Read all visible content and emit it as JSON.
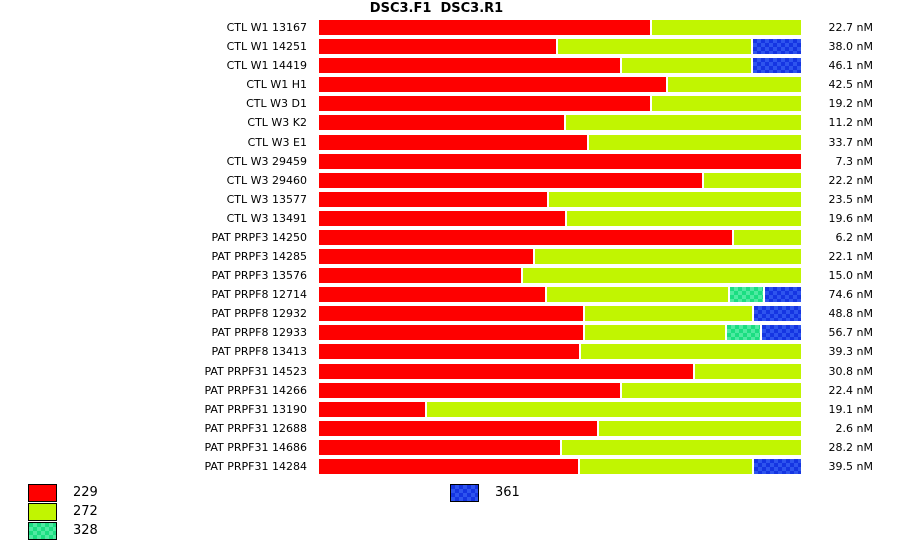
{
  "title": "DSC3.F1  DSC3.R1",
  "value_unit": "nM",
  "colors": {
    "229": "#fe0000",
    "272": "#c1f501",
    "328_base": "#1bde81",
    "328_dot": "#4feaa2",
    "361_base": "#1535e2",
    "361_dot": "#2e54ee"
  },
  "legend": {
    "items": [
      {
        "label": "229",
        "swatch": "red-solid"
      },
      {
        "label": "272",
        "swatch": "green-solid"
      },
      {
        "label": "328",
        "swatch": "green-checkered"
      },
      {
        "label": "361",
        "swatch": "blue-checkered"
      }
    ]
  },
  "chart_data": {
    "type": "bar",
    "orientation": "horizontal",
    "stacked": true,
    "grid": false,
    "axes_visible": false,
    "series_names": [
      "229",
      "272",
      "328",
      "361"
    ],
    "segment_unit": "percent-of-bar-width",
    "rows": [
      {
        "label": "CTL W1 13167",
        "value_label": "22.7 nM",
        "segments": [
          {
            "series": "229",
            "pct": 68.7
          },
          {
            "series": "272",
            "pct": 31.3
          }
        ]
      },
      {
        "label": "CTL W1 14251",
        "value_label": "38.0 nM",
        "segments": [
          {
            "series": "229",
            "pct": 49.2
          },
          {
            "series": "272",
            "pct": 40.5
          },
          {
            "series": "361",
            "pct": 10.3
          }
        ]
      },
      {
        "label": "CTL W1 14419",
        "value_label": "46.1 nM",
        "segments": [
          {
            "series": "229",
            "pct": 62.4
          },
          {
            "series": "272",
            "pct": 27.2
          },
          {
            "series": "361",
            "pct": 10.4
          }
        ]
      },
      {
        "label": "CTL W1 H1",
        "value_label": "42.5 nM",
        "segments": [
          {
            "series": "229",
            "pct": 72.0
          },
          {
            "series": "272",
            "pct": 28.0
          }
        ]
      },
      {
        "label": "CTL W3 D1",
        "value_label": "19.2 nM",
        "segments": [
          {
            "series": "229",
            "pct": 68.7
          },
          {
            "series": "272",
            "pct": 31.3
          }
        ]
      },
      {
        "label": "CTL W3 K2",
        "value_label": "11.2 nM",
        "segments": [
          {
            "series": "229",
            "pct": 50.8
          },
          {
            "series": "272",
            "pct": 49.2
          }
        ]
      },
      {
        "label": "CTL W3 E1",
        "value_label": "33.7 nM",
        "segments": [
          {
            "series": "229",
            "pct": 55.6
          },
          {
            "series": "272",
            "pct": 44.4
          }
        ]
      },
      {
        "label": "CTL W3 29459",
        "value_label": "7.3 nM",
        "segments": [
          {
            "series": "229",
            "pct": 100.0
          }
        ]
      },
      {
        "label": "CTL W3 29460",
        "value_label": "22.2 nM",
        "segments": [
          {
            "series": "229",
            "pct": 79.5
          },
          {
            "series": "272",
            "pct": 20.5
          }
        ]
      },
      {
        "label": "CTL W3 13577",
        "value_label": "23.5 nM",
        "segments": [
          {
            "series": "229",
            "pct": 47.3
          },
          {
            "series": "272",
            "pct": 52.7
          }
        ]
      },
      {
        "label": "CTL W3 13491",
        "value_label": "19.6 nM",
        "segments": [
          {
            "series": "229",
            "pct": 51.0
          },
          {
            "series": "272",
            "pct": 49.0
          }
        ]
      },
      {
        "label": "PAT PRPF3 14250",
        "value_label": "6.2 nM",
        "segments": [
          {
            "series": "229",
            "pct": 85.7
          },
          {
            "series": "272",
            "pct": 14.3
          }
        ]
      },
      {
        "label": "PAT PRPF3 14285",
        "value_label": "22.1 nM",
        "segments": [
          {
            "series": "229",
            "pct": 44.4
          },
          {
            "series": "272",
            "pct": 55.6
          }
        ]
      },
      {
        "label": "PAT PRPF3 13576",
        "value_label": "15.0 nM",
        "segments": [
          {
            "series": "229",
            "pct": 41.9
          },
          {
            "series": "272",
            "pct": 58.1
          }
        ]
      },
      {
        "label": "PAT PRPF8 12714",
        "value_label": "74.6 nM",
        "segments": [
          {
            "series": "229",
            "pct": 46.9
          },
          {
            "series": "272",
            "pct": 38.0
          },
          {
            "series": "328",
            "pct": 7.3
          },
          {
            "series": "361",
            "pct": 7.8
          }
        ]
      },
      {
        "label": "PAT PRPF8 12932",
        "value_label": "48.8 nM",
        "segments": [
          {
            "series": "229",
            "pct": 54.8
          },
          {
            "series": "272",
            "pct": 35.1
          },
          {
            "series": "361",
            "pct": 10.1
          }
        ]
      },
      {
        "label": "PAT PRPF8 12933",
        "value_label": "56.7 nM",
        "segments": [
          {
            "series": "229",
            "pct": 54.8
          },
          {
            "series": "272",
            "pct": 29.5
          },
          {
            "series": "328",
            "pct": 7.3
          },
          {
            "series": "361",
            "pct": 8.4
          }
        ]
      },
      {
        "label": "PAT PRPF8 13413",
        "value_label": "39.3 nM",
        "segments": [
          {
            "series": "229",
            "pct": 53.9
          },
          {
            "series": "272",
            "pct": 46.1
          }
        ]
      },
      {
        "label": "PAT PRPF31 14523",
        "value_label": "30.8 nM",
        "segments": [
          {
            "series": "229",
            "pct": 77.6
          },
          {
            "series": "272",
            "pct": 22.4
          }
        ]
      },
      {
        "label": "PAT PRPF31 14266",
        "value_label": "22.4 nM",
        "segments": [
          {
            "series": "229",
            "pct": 62.4
          },
          {
            "series": "272",
            "pct": 37.6
          }
        ]
      },
      {
        "label": "PAT PRPF31 13190",
        "value_label": "19.1 nM",
        "segments": [
          {
            "series": "229",
            "pct": 22.0
          },
          {
            "series": "272",
            "pct": 78.0
          }
        ]
      },
      {
        "label": "PAT PRPF31 12688",
        "value_label": "2.6 nM",
        "segments": [
          {
            "series": "229",
            "pct": 57.7
          },
          {
            "series": "272",
            "pct": 42.3
          }
        ]
      },
      {
        "label": "PAT PRPF31 14686",
        "value_label": "28.2 nM",
        "segments": [
          {
            "series": "229",
            "pct": 50.0
          },
          {
            "series": "272",
            "pct": 50.0
          }
        ]
      },
      {
        "label": "PAT PRPF31 14284",
        "value_label": "39.5 nM",
        "segments": [
          {
            "series": "229",
            "pct": 53.7
          },
          {
            "series": "272",
            "pct": 36.1
          },
          {
            "series": "361",
            "pct": 10.2
          }
        ]
      }
    ]
  }
}
